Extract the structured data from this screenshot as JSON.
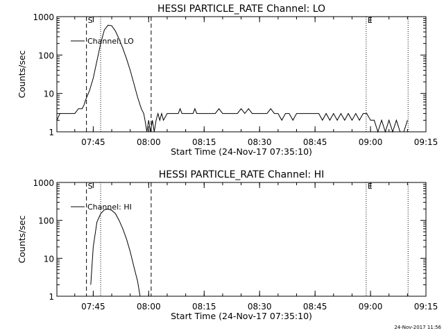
{
  "chart_data": [
    {
      "type": "line",
      "title": "HESSI PARTICLE_RATE Channel: LO",
      "xlabel": "Start Time (24-Nov-17 07:35:10)",
      "ylabel": "Counts/sec",
      "yscale": "log",
      "ylim": [
        1,
        1000
      ],
      "xlim": [
        "07:35:10",
        "09:15"
      ],
      "x_ticks": [
        "07:45",
        "08:00",
        "08:15",
        "08:30",
        "08:45",
        "09:00",
        "09:15"
      ],
      "y_ticks": [
        "1",
        "10",
        "100",
        "1000"
      ],
      "legend": {
        "label": "Channel: LO",
        "position": "top-left"
      },
      "markers": [
        {
          "time": "07:43:10",
          "label": "S",
          "style": "dashed"
        },
        {
          "time": "07:47:00",
          "label": "",
          "style": "dotted"
        },
        {
          "time": "08:00:40",
          "label": "",
          "style": "dashed"
        },
        {
          "time": "08:58:50",
          "label": "E",
          "style": "dotted"
        },
        {
          "time": "09:10:10",
          "label": "",
          "style": "dotted"
        }
      ],
      "series": [
        {
          "x": [
            "07:35:10",
            "07:36:00",
            "07:37:30",
            "07:39:00",
            "07:40:00",
            "07:41:00",
            "07:41:30",
            "07:42:00",
            "07:42:30",
            "07:43:00",
            "07:44:00",
            "07:45:00",
            "07:46:00",
            "07:47:00",
            "07:48:00",
            "07:49:00",
            "07:50:00",
            "07:51:00",
            "07:52:00",
            "07:53:00",
            "07:54:00",
            "07:55:00",
            "07:56:00",
            "07:57:00",
            "07:58:00",
            "07:58:40",
            "07:59:00",
            "07:59:30",
            "08:00:00",
            "08:00:30",
            "08:01:00",
            "08:01:30",
            "08:02:00",
            "08:02:30",
            "08:03:00",
            "08:03:30",
            "08:04:00",
            "08:05:00",
            "08:06:00",
            "08:07:00",
            "08:08:00",
            "08:08:30",
            "08:09:00",
            "08:10:00",
            "08:11:00",
            "08:12:00",
            "08:12:30",
            "08:13:00",
            "08:14:00",
            "08:15:00",
            "08:16:00",
            "08:17:00",
            "08:18:00",
            "08:19:00",
            "08:20:00",
            "08:21:00",
            "08:22:00",
            "08:23:00",
            "08:24:00",
            "08:25:00",
            "08:26:00",
            "08:27:00",
            "08:28:00",
            "08:29:00",
            "08:30:00",
            "08:31:00",
            "08:32:00",
            "08:33:00",
            "08:34:00",
            "08:35:00",
            "08:36:00",
            "08:37:00",
            "08:38:00",
            "08:39:00",
            "08:40:00",
            "08:41:00",
            "08:42:00",
            "08:43:00",
            "08:44:00",
            "08:45:00",
            "08:46:00",
            "08:47:00",
            "08:48:00",
            "08:49:00",
            "08:50:00",
            "08:51:00",
            "08:52:00",
            "08:53:00",
            "08:54:00",
            "08:55:00",
            "08:56:00",
            "08:57:00",
            "08:58:00",
            "08:59:00",
            "09:00:00",
            "09:01:00",
            "09:02:00",
            "09:03:00",
            "09:04:00",
            "09:05:00",
            "09:06:00",
            "09:07:00",
            "09:08:00",
            "09:09:00",
            "09:10:00"
          ],
          "y": [
            2,
            3,
            3,
            3,
            3,
            4,
            4,
            4,
            5,
            7,
            12,
            25,
            70,
            200,
            450,
            600,
            580,
            420,
            260,
            150,
            80,
            40,
            18,
            8,
            4,
            3,
            2,
            1,
            2,
            1,
            2,
            1,
            2,
            3,
            2,
            3,
            2,
            3,
            3,
            3,
            3,
            4,
            3,
            3,
            3,
            3,
            4,
            3,
            3,
            3,
            3,
            3,
            3,
            4,
            3,
            3,
            3,
            3,
            3,
            4,
            3,
            4,
            3,
            3,
            3,
            3,
            3,
            4,
            3,
            3,
            2,
            3,
            3,
            2,
            3,
            3,
            3,
            3,
            3,
            3,
            3,
            2,
            3,
            2,
            3,
            2,
            3,
            2,
            3,
            2,
            3,
            2,
            3,
            3,
            2,
            2,
            1,
            2,
            1,
            2,
            1,
            2,
            1,
            1,
            2
          ]
        }
      ]
    },
    {
      "type": "line",
      "title": "HESSI PARTICLE_RATE Channel: HI",
      "xlabel": "Start Time (24-Nov-17 07:35:10)",
      "ylabel": "Counts/sec",
      "yscale": "log",
      "ylim": [
        1,
        1000
      ],
      "xlim": [
        "07:35:10",
        "09:15"
      ],
      "x_ticks": [
        "07:45",
        "08:00",
        "08:15",
        "08:30",
        "08:45",
        "09:00",
        "09:15"
      ],
      "y_ticks": [
        "1",
        "10",
        "100",
        "1000"
      ],
      "legend": {
        "label": "Channel: HI",
        "position": "top-left"
      },
      "markers": [
        {
          "time": "07:43:10",
          "label": "S",
          "style": "dashed"
        },
        {
          "time": "07:47:00",
          "label": "",
          "style": "dotted"
        },
        {
          "time": "08:00:40",
          "label": "",
          "style": "dashed"
        },
        {
          "time": "08:58:50",
          "label": "E",
          "style": "dotted"
        },
        {
          "time": "09:10:10",
          "label": "",
          "style": "dotted"
        }
      ],
      "series": [
        {
          "x": [
            "07:44:20",
            "07:45:00",
            "07:46:00",
            "07:47:00",
            "07:48:00",
            "07:49:00",
            "07:50:00",
            "07:51:00",
            "07:52:00",
            "07:53:00",
            "07:54:00",
            "07:55:00",
            "07:56:00",
            "07:57:00",
            "07:57:40"
          ],
          "y": [
            2,
            20,
            90,
            150,
            190,
            200,
            185,
            150,
            100,
            60,
            32,
            15,
            6,
            2.5,
            1
          ]
        }
      ]
    }
  ],
  "timestamp": "24-Nov-2017 11:56"
}
